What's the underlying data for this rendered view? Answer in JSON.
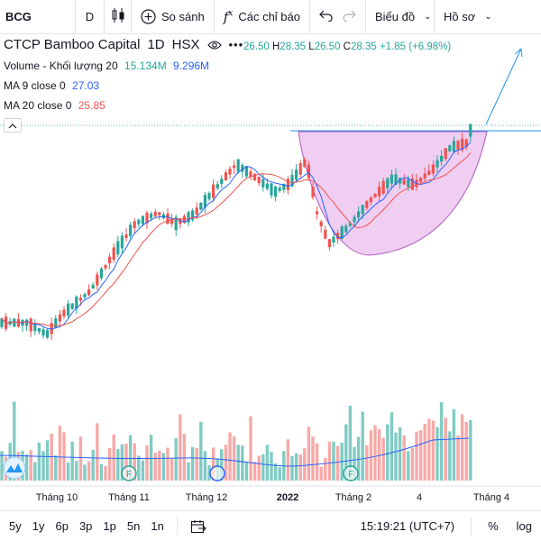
{
  "toolbar": {
    "symbol": "BCG",
    "interval": "D",
    "compare": "So sánh",
    "indicators": "Các chỉ báo",
    "layout": "Biểu đồ",
    "template": "Hồ sơ"
  },
  "legend": {
    "company": "CTCP Bamboo Capital",
    "interval": "1D",
    "exchange": "HSX",
    "ohlc": {
      "o": "26.50",
      "h_label": "H",
      "h": "28.35",
      "l_label": "L",
      "l": "26.50",
      "c_label": "C",
      "c": "28.35",
      "change": "+1.85 (+6.98%)"
    },
    "volume": {
      "label": "Volume - Khối lượng 20",
      "value1": "15.134M",
      "value2": "9.296M"
    },
    "ma9": {
      "label": "MA 9 close 0",
      "value": "27.03"
    },
    "ma20": {
      "label": "MA 20 close 0",
      "value": "25.85"
    }
  },
  "time_axis": [
    "Tháng 10",
    "Tháng 11",
    "Tháng 12",
    "2022",
    "Tháng 2",
    "4",
    "Tháng 4"
  ],
  "bottom": {
    "ranges": [
      "5y",
      "1y",
      "6p",
      "3p",
      "1p",
      "5n",
      "1n"
    ],
    "clock": "15:19:21 (UTC+7)",
    "percent": "%",
    "log": "log"
  },
  "colors": {
    "up": "#26a69a",
    "down": "#ef5350",
    "vol_up": "#80cbc4",
    "vol_down": "#f7a9a7",
    "ma9": "#2962ff",
    "ma20": "#ef5350",
    "cup_fill": "#e1a6e8",
    "cup_stroke": "#b25cc0",
    "breakout_line": "#2196f3"
  },
  "event_markers": [
    "F",
    "",
    "F"
  ],
  "chart_data": {
    "type": "candlestick",
    "seed": 7
  }
}
